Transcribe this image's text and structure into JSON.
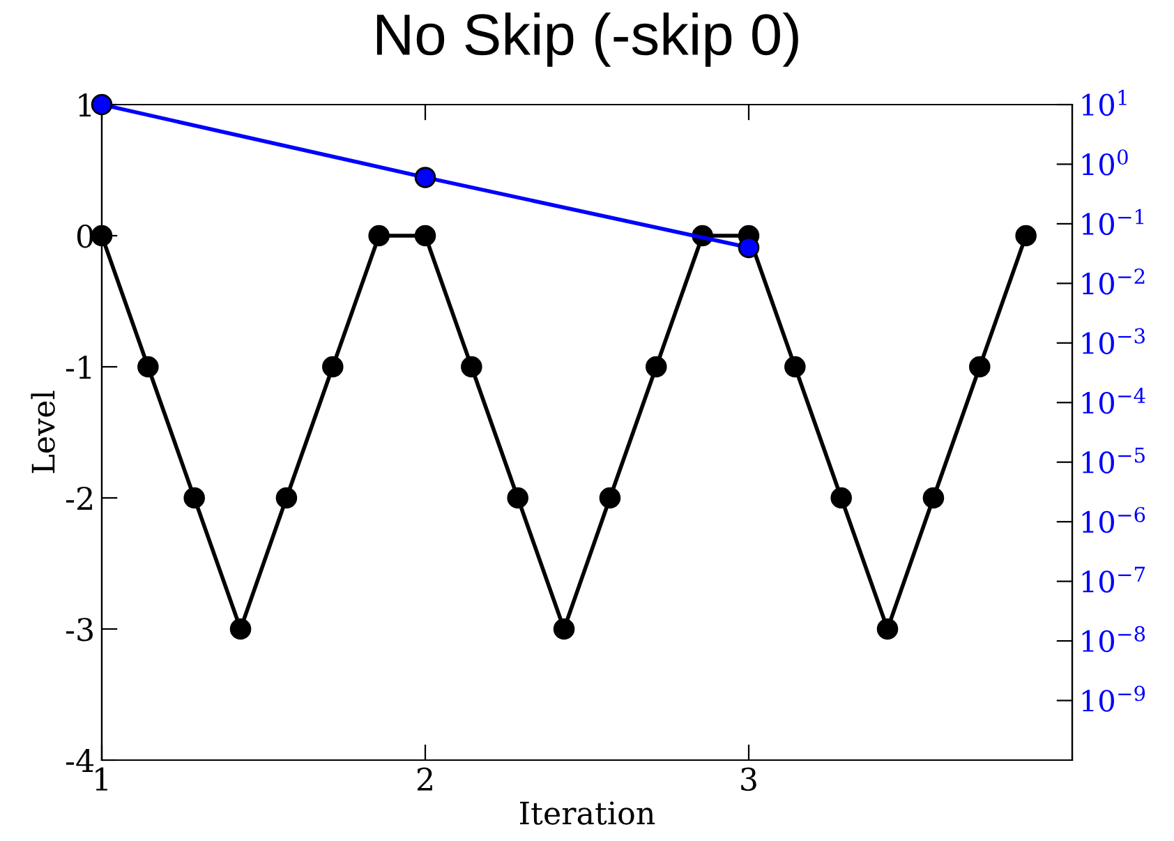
{
  "chart_data": {
    "type": "line",
    "title": "No Skip (-skip 0)",
    "xlabel": "Iteration",
    "ylabel": "Level",
    "marker": "circle",
    "line_style": "solid",
    "grid": false,
    "xlim": [
      1,
      4
    ],
    "xticks": [
      1,
      2,
      3
    ],
    "ylim": [
      -4,
      1
    ],
    "yticks": [
      {
        "value": -4,
        "label": "-4"
      },
      {
        "value": -3,
        "label": "-3"
      },
      {
        "value": -2,
        "label": "-2"
      },
      {
        "value": -1,
        "label": "-1"
      },
      0,
      1
    ],
    "log": "y2",
    "y2lim": [
      1e-10,
      10
    ],
    "y2ticks": [
      {
        "value": 10,
        "label": "10$^{1}$"
      },
      {
        "value": 1,
        "label": "10$^{0}$"
      },
      {
        "value": 0.1,
        "label": "10$^{−1}$"
      },
      {
        "value": 0.01,
        "label": "10$^{−2}$"
      },
      {
        "value": 0.001,
        "label": "10$^{−3}$"
      },
      {
        "value": 0.0001,
        "label": "10$^{−4}$"
      },
      {
        "value": 1e-05,
        "label": "10$^{−5}$"
      },
      {
        "value": 1e-06,
        "label": "10$^{−6}$"
      },
      {
        "value": 1e-07,
        "label": "10$^{−7}$"
      },
      {
        "value": 1e-08,
        "label": "10$^{−8}$"
      },
      {
        "value": 1e-09,
        "label": "10$^{−9}$"
      }
    ],
    "series": [
      {
        "color": "#000000",
        "x": [
          1,
          1.143,
          1.286,
          1.429,
          1.571,
          1.714,
          1.857,
          2,
          2.143,
          2.286,
          2.429,
          2.571,
          2.714,
          2.857,
          3,
          3.143,
          3.286,
          3.429,
          3.571,
          3.714,
          3.857
        ],
        "values": [
          0,
          -1,
          -2,
          -3,
          -2,
          -1,
          0,
          0,
          -1,
          -2,
          -3,
          -2,
          -1,
          0,
          0,
          -1,
          -2,
          -3,
          -2,
          -1,
          0
        ]
      },
      {
        "color": "#0000ff",
        "axis": "y2",
        "x": [
          1,
          2,
          3
        ],
        "values": [
          10,
          0.6,
          0.04
        ]
      }
    ]
  }
}
